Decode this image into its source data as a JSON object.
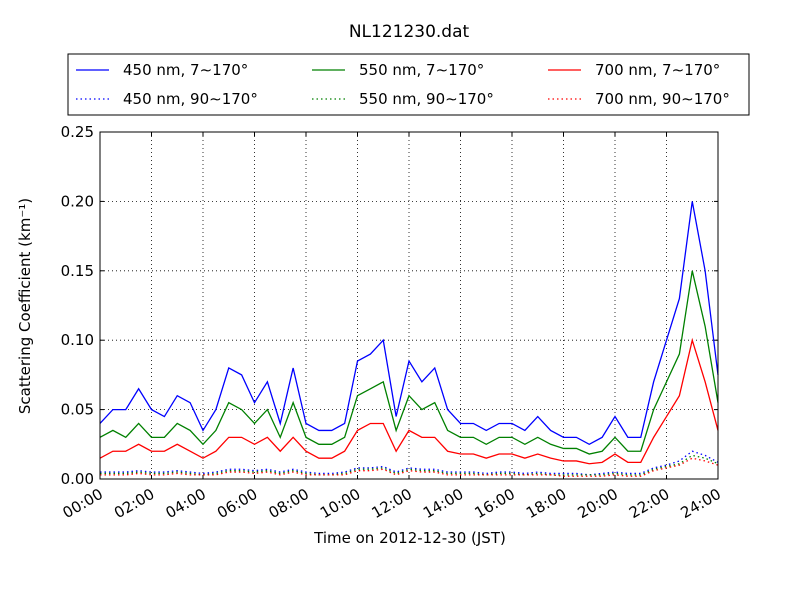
{
  "chart_data": {
    "type": "line",
    "title": "NL121230.dat",
    "xlabel": "Time on 2012-12-30 (JST)",
    "ylabel": "Scattering Coefficient (km⁻¹)",
    "x": [
      "00:00",
      "00:30",
      "01:00",
      "01:30",
      "02:00",
      "02:30",
      "03:00",
      "03:30",
      "04:00",
      "04:30",
      "05:00",
      "05:30",
      "06:00",
      "06:30",
      "07:00",
      "07:30",
      "08:00",
      "08:30",
      "09:00",
      "09:30",
      "10:00",
      "10:30",
      "11:00",
      "11:30",
      "12:00",
      "12:30",
      "13:00",
      "13:30",
      "14:00",
      "14:30",
      "15:00",
      "15:30",
      "16:00",
      "16:30",
      "17:00",
      "17:30",
      "18:00",
      "18:30",
      "19:00",
      "19:30",
      "20:00",
      "20:30",
      "21:00",
      "21:30",
      "22:00",
      "22:30",
      "23:00",
      "23:30",
      "24:00"
    ],
    "xlim": [
      "00:00",
      "24:00"
    ],
    "xticks": [
      "00:00",
      "02:00",
      "04:00",
      "06:00",
      "08:00",
      "10:00",
      "12:00",
      "14:00",
      "16:00",
      "18:00",
      "20:00",
      "22:00",
      "24:00"
    ],
    "ylim": [
      0,
      0.25
    ],
    "yticks": [
      {
        "value": 0,
        "label": "0.00"
      },
      {
        "value": 0.05,
        "label": "0.05"
      },
      {
        "value": 0.1,
        "label": "0.10"
      },
      {
        "value": 0.15,
        "label": "0.15"
      },
      {
        "value": 0.2,
        "label": "0.20"
      },
      {
        "value": 0.25,
        "label": "0.25"
      }
    ],
    "grid": true,
    "legend": "top",
    "series": [
      {
        "name": "450 nm, 7∼170°",
        "color": "#0000ff",
        "linestyle": "solid",
        "values": [
          0.04,
          0.05,
          0.05,
          0.065,
          0.05,
          0.045,
          0.06,
          0.055,
          0.035,
          0.05,
          0.08,
          0.075,
          0.055,
          0.07,
          0.04,
          0.08,
          0.04,
          0.035,
          0.035,
          0.04,
          0.085,
          0.09,
          0.1,
          0.045,
          0.085,
          0.07,
          0.08,
          0.05,
          0.04,
          0.04,
          0.035,
          0.04,
          0.04,
          0.035,
          0.045,
          0.035,
          0.03,
          0.03,
          0.025,
          0.03,
          0.045,
          0.03,
          0.03,
          0.07,
          0.1,
          0.13,
          0.2,
          0.15,
          0.075
        ]
      },
      {
        "name": "450 nm, 90∼170°",
        "color": "#0000ff",
        "linestyle": "dotted",
        "values": [
          0.005,
          0.005,
          0.005,
          0.006,
          0.005,
          0.005,
          0.006,
          0.005,
          0.004,
          0.005,
          0.007,
          0.007,
          0.006,
          0.007,
          0.005,
          0.007,
          0.005,
          0.004,
          0.004,
          0.005,
          0.008,
          0.008,
          0.009,
          0.005,
          0.008,
          0.007,
          0.007,
          0.005,
          0.005,
          0.005,
          0.004,
          0.005,
          0.005,
          0.004,
          0.005,
          0.004,
          0.004,
          0.004,
          0.003,
          0.004,
          0.005,
          0.004,
          0.004,
          0.008,
          0.01,
          0.013,
          0.02,
          0.017,
          0.012
        ]
      },
      {
        "name": "550 nm, 7∼170°",
        "color": "#008000",
        "linestyle": "solid",
        "values": [
          0.03,
          0.035,
          0.03,
          0.04,
          0.03,
          0.03,
          0.04,
          0.035,
          0.025,
          0.035,
          0.055,
          0.05,
          0.04,
          0.05,
          0.03,
          0.055,
          0.03,
          0.025,
          0.025,
          0.03,
          0.06,
          0.065,
          0.07,
          0.035,
          0.06,
          0.05,
          0.055,
          0.035,
          0.03,
          0.03,
          0.025,
          0.03,
          0.03,
          0.025,
          0.03,
          0.025,
          0.022,
          0.022,
          0.018,
          0.02,
          0.03,
          0.02,
          0.02,
          0.05,
          0.07,
          0.09,
          0.15,
          0.11,
          0.055
        ]
      },
      {
        "name": "550 nm, 90∼170°",
        "color": "#008000",
        "linestyle": "dotted",
        "values": [
          0.004,
          0.004,
          0.004,
          0.005,
          0.004,
          0.004,
          0.005,
          0.004,
          0.003,
          0.004,
          0.006,
          0.006,
          0.005,
          0.006,
          0.004,
          0.006,
          0.004,
          0.003,
          0.003,
          0.004,
          0.007,
          0.007,
          0.008,
          0.004,
          0.007,
          0.006,
          0.006,
          0.004,
          0.004,
          0.004,
          0.003,
          0.004,
          0.004,
          0.003,
          0.004,
          0.003,
          0.003,
          0.003,
          0.003,
          0.003,
          0.004,
          0.003,
          0.003,
          0.007,
          0.009,
          0.011,
          0.017,
          0.015,
          0.011
        ]
      },
      {
        "name": "700 nm, 7∼170°",
        "color": "#ff0000",
        "linestyle": "solid",
        "values": [
          0.015,
          0.02,
          0.02,
          0.025,
          0.02,
          0.02,
          0.025,
          0.02,
          0.015,
          0.02,
          0.03,
          0.03,
          0.025,
          0.03,
          0.02,
          0.03,
          0.02,
          0.015,
          0.015,
          0.02,
          0.035,
          0.04,
          0.04,
          0.02,
          0.035,
          0.03,
          0.03,
          0.02,
          0.018,
          0.018,
          0.015,
          0.018,
          0.018,
          0.015,
          0.018,
          0.015,
          0.013,
          0.013,
          0.011,
          0.012,
          0.018,
          0.012,
          0.012,
          0.03,
          0.045,
          0.06,
          0.1,
          0.07,
          0.035
        ]
      },
      {
        "name": "700 nm, 90∼170°",
        "color": "#ff0000",
        "linestyle": "dotted",
        "values": [
          0.003,
          0.003,
          0.003,
          0.004,
          0.003,
          0.003,
          0.004,
          0.003,
          0.003,
          0.003,
          0.005,
          0.005,
          0.004,
          0.005,
          0.003,
          0.005,
          0.003,
          0.003,
          0.003,
          0.003,
          0.006,
          0.006,
          0.007,
          0.003,
          0.006,
          0.005,
          0.005,
          0.003,
          0.003,
          0.003,
          0.003,
          0.003,
          0.003,
          0.003,
          0.003,
          0.003,
          0.002,
          0.002,
          0.002,
          0.002,
          0.003,
          0.002,
          0.002,
          0.006,
          0.008,
          0.01,
          0.015,
          0.013,
          0.01
        ]
      }
    ]
  }
}
